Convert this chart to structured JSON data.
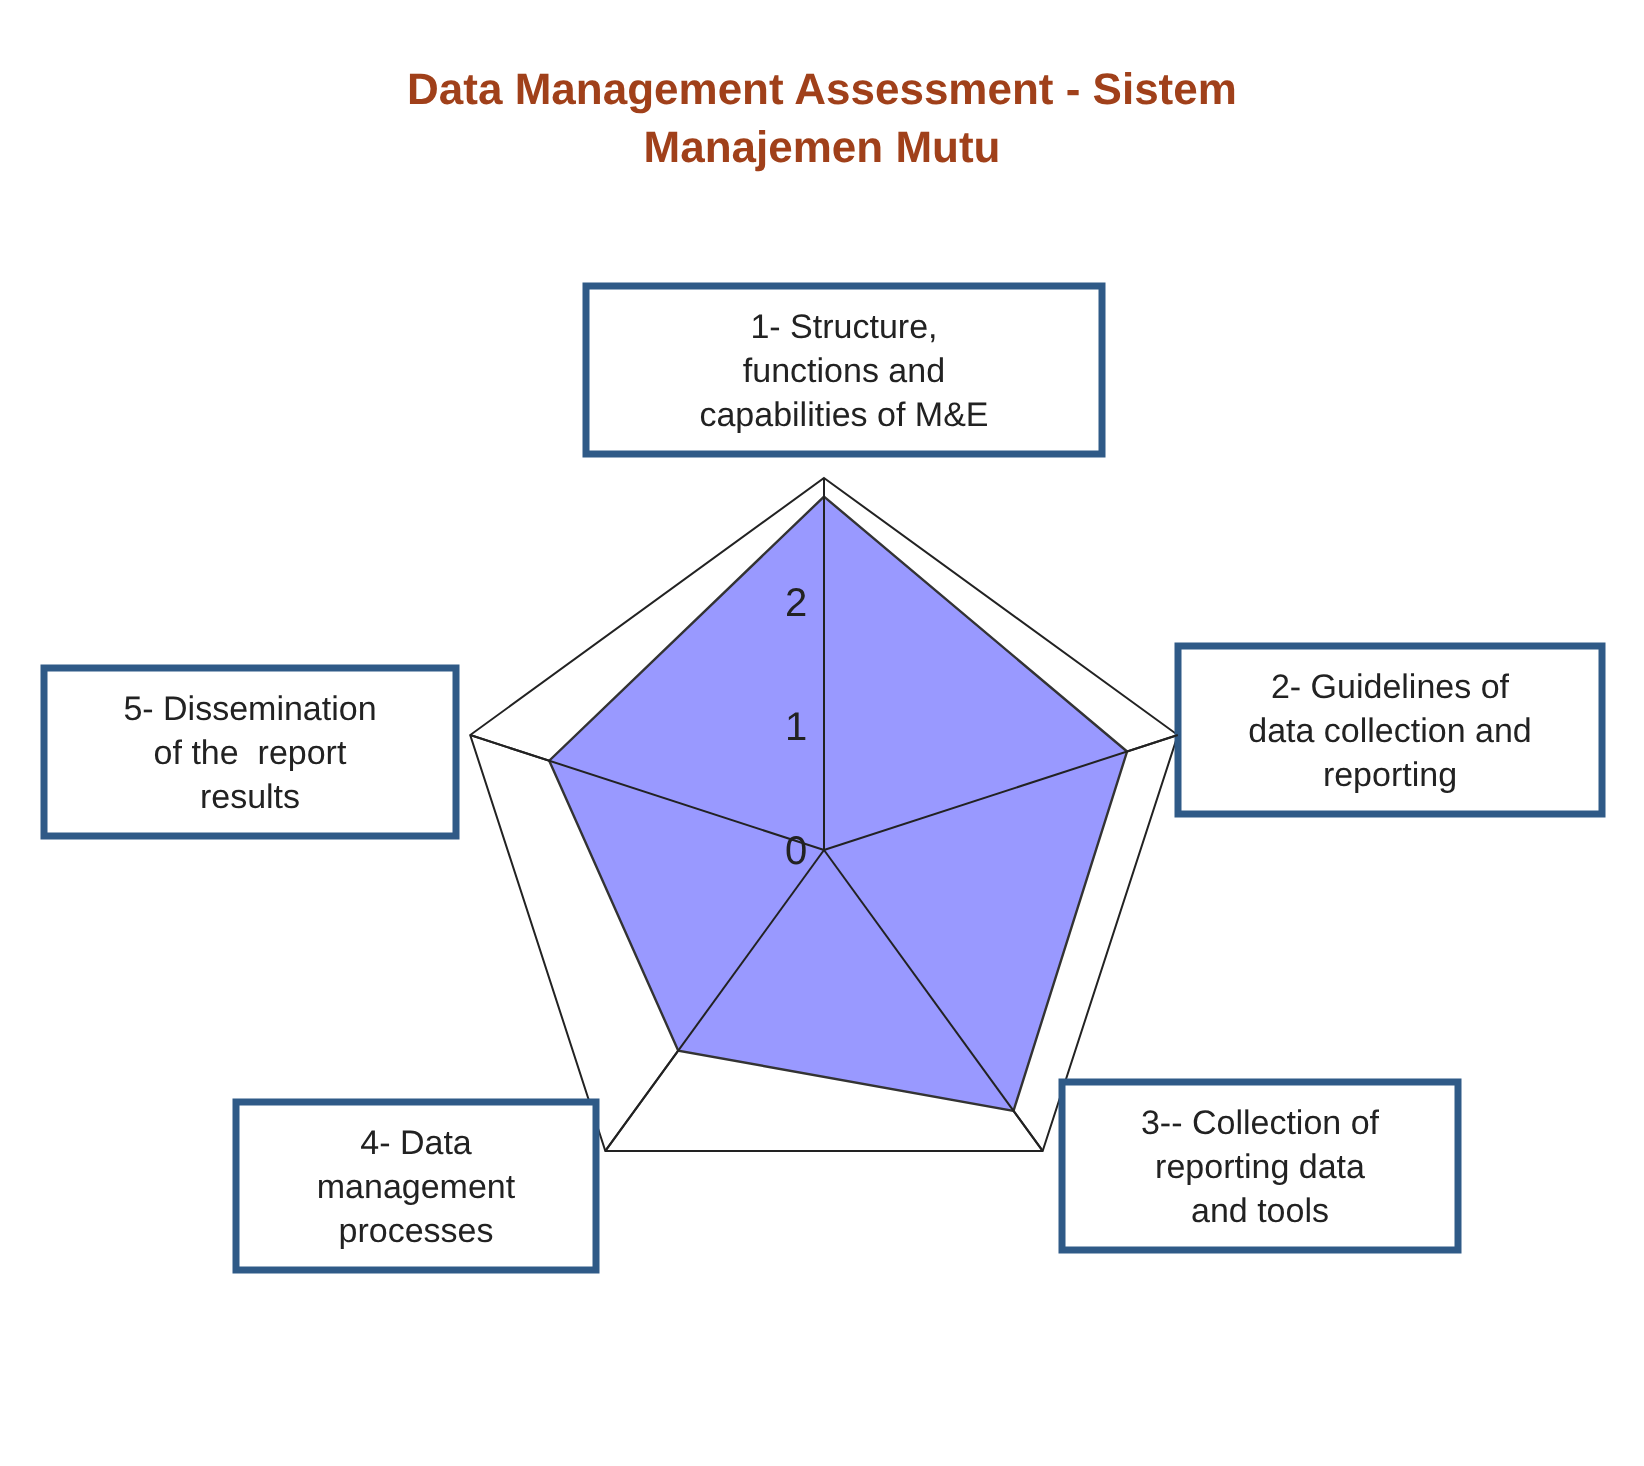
{
  "chart_data": {
    "type": "radar",
    "title": "Data Management Assessment - Sistem Manajemen Mutu",
    "categories": [
      "1- Structure, functions and capabilities of M&E",
      "2- Guidelines of data collection and reporting",
      "3-- Collection of reporting data and tools",
      "4- Data management processes",
      "5- Dissemination of the  report results"
    ],
    "series": [
      {
        "color": "#9999ff",
        "values": [
          2.85,
          2.57,
          2.6,
          2.0,
          2.33
        ]
      }
    ],
    "ylim": [
      0,
      3
    ],
    "yticks": [
      0,
      1,
      2
    ],
    "grid": true
  }
}
